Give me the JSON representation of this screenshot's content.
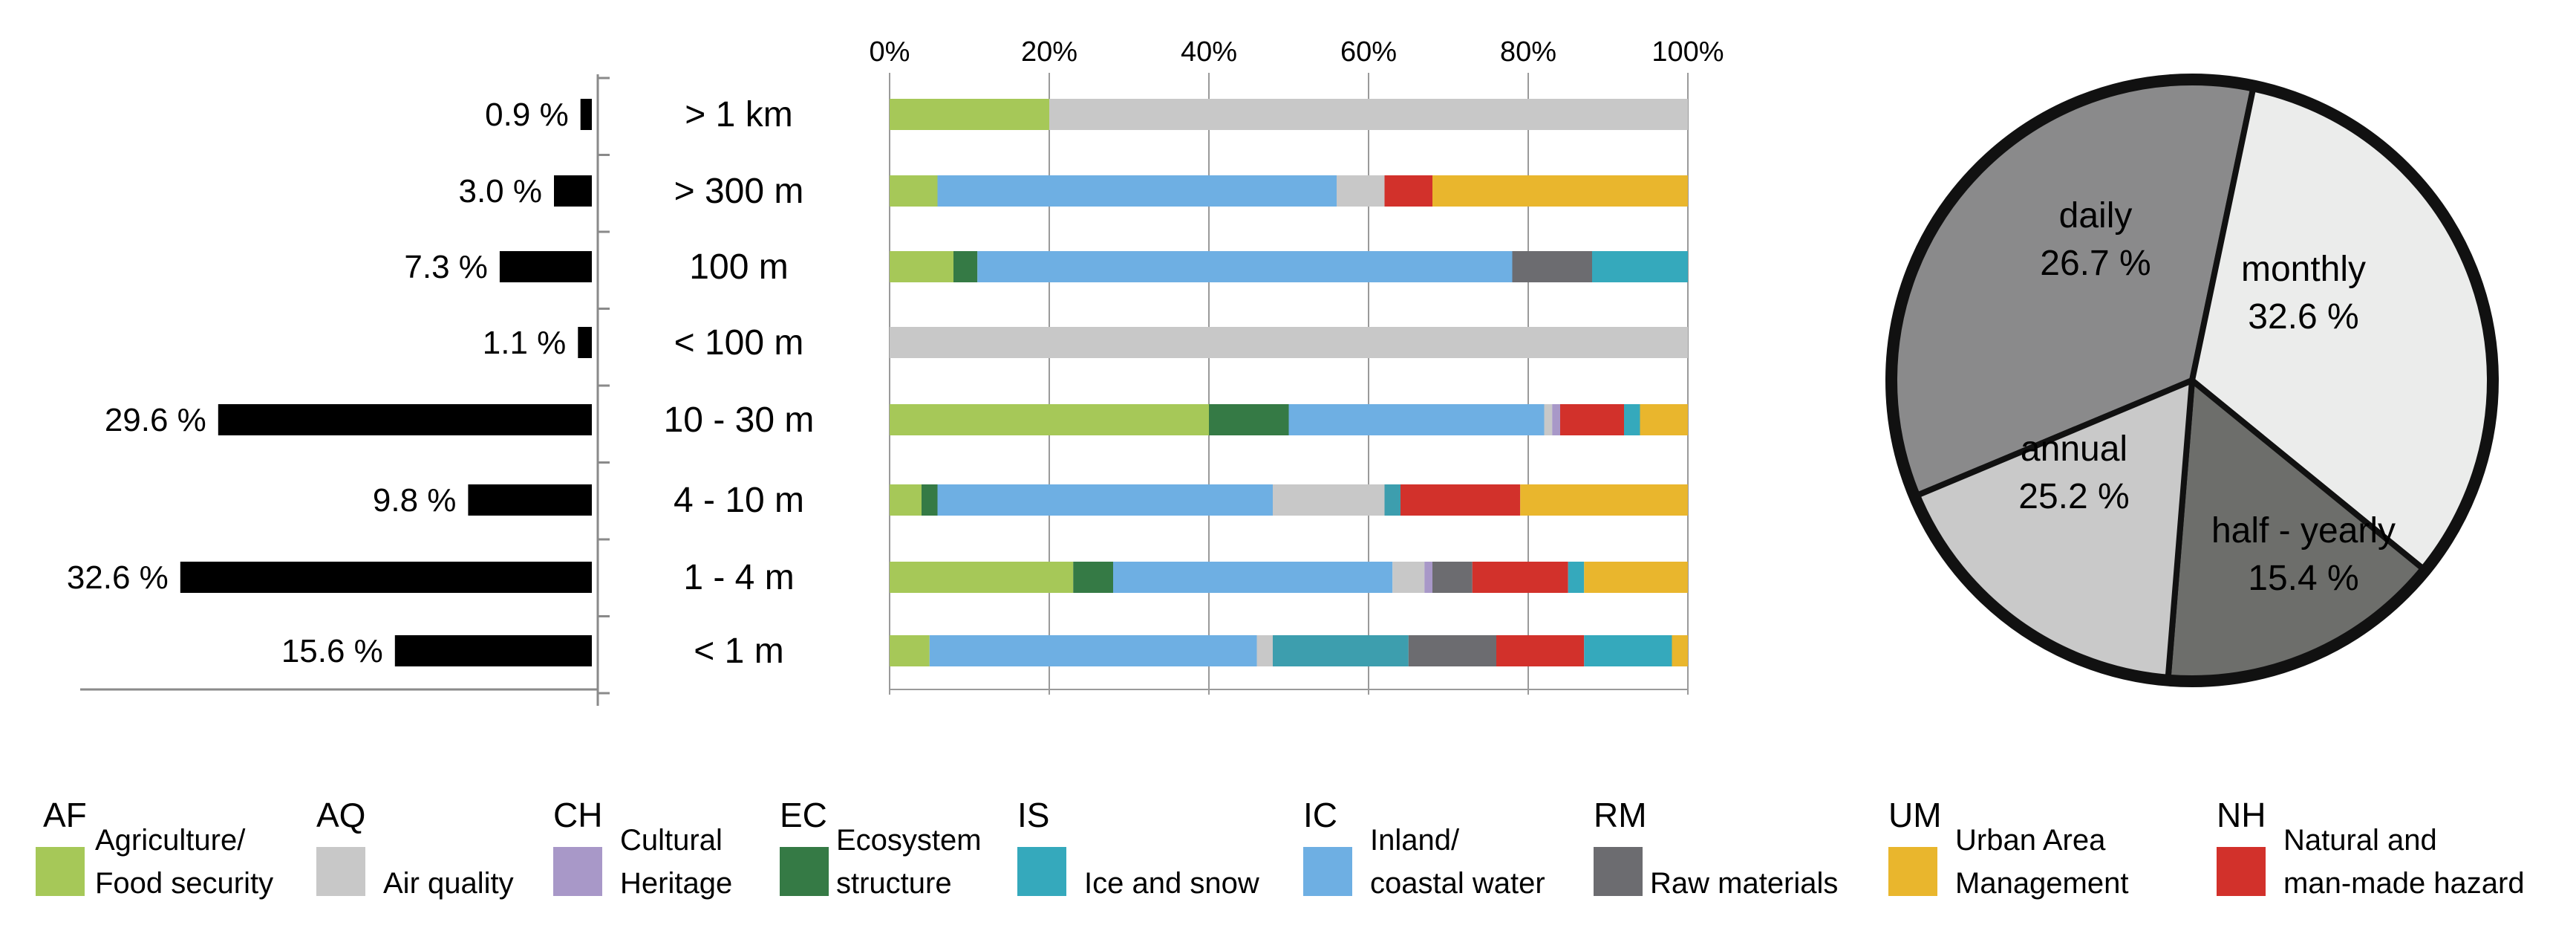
{
  "chart_data": [
    {
      "type": "bar",
      "orientation": "horizontal",
      "categories": [
        "> 1 km",
        "> 300 m",
        "100 m",
        "< 100 m",
        "10 - 30 m",
        "4 - 10 m",
        "1 - 4 m",
        "< 1 m"
      ],
      "values": [
        0.9,
        3.0,
        7.3,
        1.1,
        29.6,
        9.8,
        32.6,
        15.6
      ],
      "value_labels": [
        "0.9 %",
        "3.0 %",
        "7.3 %",
        "1.1 %",
        "29.6 %",
        "9.8 %",
        "32.6 %",
        "15.6 %"
      ],
      "bar_color": "#000000",
      "direction": "right-to-left"
    },
    {
      "type": "bar",
      "stacked": "100%",
      "orientation": "horizontal",
      "categories": [
        "> 1 km",
        "> 300 m",
        "100 m",
        "< 100 m",
        "10 - 30 m",
        "4 - 10 m",
        "1 - 4 m",
        "< 1 m"
      ],
      "x_ticks": [
        "0%",
        "20%",
        "40%",
        "60%",
        "80%",
        "100%"
      ],
      "xlim": [
        0,
        100
      ],
      "grid": true,
      "series": [
        {
          "name": "Agriculture/ Food security",
          "values": [
            20,
            6,
            8,
            0,
            40,
            4,
            23,
            5
          ]
        },
        {
          "name": "Ecosystem structure",
          "values": [
            0,
            0,
            3,
            0,
            10,
            2,
            5,
            0
          ]
        },
        {
          "name": "Inland/ coastal water",
          "values": [
            0,
            50,
            67,
            0,
            32,
            42,
            35,
            41
          ]
        },
        {
          "name": "Air quality",
          "values": [
            80,
            6,
            0,
            100,
            1,
            14,
            4,
            2
          ]
        },
        {
          "name": "Cultural Heritage",
          "values": [
            0,
            0,
            0,
            0,
            1,
            0,
            1,
            0
          ]
        },
        {
          "name": "Ice and snow",
          "values": [
            0,
            0,
            0,
            0,
            0,
            2,
            0,
            17
          ]
        },
        {
          "name": "Raw materials",
          "values": [
            0,
            0,
            10,
            0,
            0,
            0,
            5,
            11
          ]
        },
        {
          "name": "Natural and man-made hazard",
          "values": [
            0,
            6,
            0,
            0,
            8,
            15,
            12,
            11
          ]
        },
        {
          "name": "Ice and snow",
          "values": [
            0,
            0,
            12,
            0,
            2,
            0,
            2,
            11
          ]
        },
        {
          "name": "Urban Area Management",
          "values": [
            0,
            32,
            0,
            0,
            6,
            21,
            13,
            2
          ]
        }
      ]
    },
    {
      "type": "pie",
      "slices": [
        {
          "label": "daily",
          "value": 26.7,
          "display": "26.7 %",
          "color": "#8a8a8b"
        },
        {
          "label": "monthly",
          "value": 32.6,
          "display": "32.6 %",
          "color": "#ebeceb"
        },
        {
          "label": "half - yearly",
          "value": 15.4,
          "display": "15.4 %",
          "color": "#6d6e6b"
        },
        {
          "label": "annual",
          "value": 25.2,
          "display": "25.2 %",
          "color": "#c9c9c9"
        }
      ]
    }
  ],
  "colors": {
    "AF": "#a6c858",
    "AQ": "#c8c8c8",
    "CH": "#a898c8",
    "EC": "#357a45",
    "IS": "#35a9bc",
    "IC": "#6eafe3",
    "RM": "#6c6c70",
    "UM": "#e9b62d",
    "NH": "#d2312b"
  },
  "legend": [
    {
      "code": "AF",
      "color_key": "AF",
      "line1": "Agriculture/",
      "line2": "Food security"
    },
    {
      "code": "AQ",
      "color_key": "AQ",
      "line1": "",
      "line2": "Air quality"
    },
    {
      "code": "CH",
      "color_key": "CH",
      "line1": "Cultural",
      "line2": "Heritage"
    },
    {
      "code": "EC",
      "color_key": "EC",
      "line1": "Ecosystem",
      "line2": "structure"
    },
    {
      "code": "IS",
      "color_key": "IS",
      "line1": "",
      "line2": "Ice and snow"
    },
    {
      "code": "IC",
      "color_key": "IC",
      "line1": "Inland/",
      "line2": "coastal water"
    },
    {
      "code": "RM",
      "color_key": "RM",
      "line1": "",
      "line2": "Raw materials"
    },
    {
      "code": "UM",
      "color_key": "UM",
      "line1": "Urban Area",
      "line2": "Management"
    },
    {
      "code": "NH",
      "color_key": "NH",
      "line1": "Natural and",
      "line2": "man-made hazard"
    }
  ]
}
